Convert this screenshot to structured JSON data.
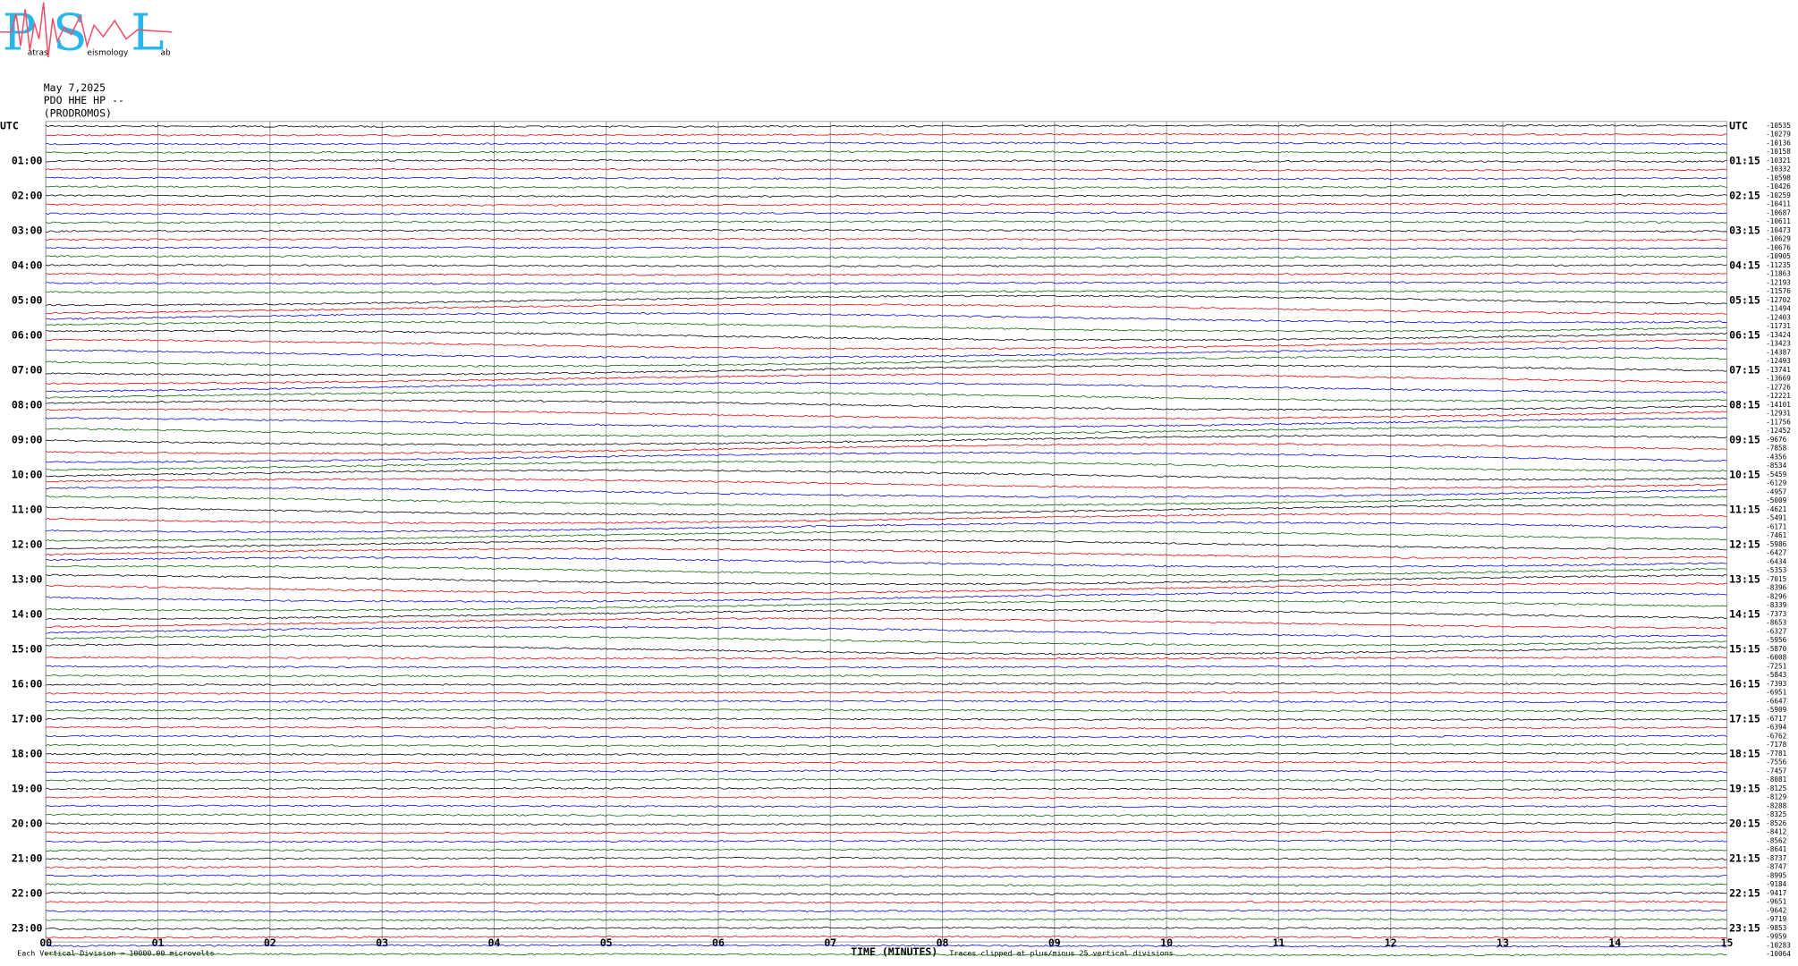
{
  "header": {
    "date": "May 7,2025",
    "station": "PDO HHE HP --",
    "location": "(PRODROMOS)"
  },
  "logo": {
    "letters": [
      "P",
      "S",
      "L"
    ],
    "words": [
      "atras",
      "eismology",
      "ab"
    ]
  },
  "left_labels": [
    "UTC",
    "01:00",
    "02:00",
    "03:00",
    "04:00",
    "05:00",
    "06:00",
    "07:00",
    "08:00",
    "09:00",
    "10:00",
    "11:00",
    "12:00",
    "13:00",
    "14:00",
    "15:00",
    "16:00",
    "17:00",
    "18:00",
    "19:00",
    "20:00",
    "21:00",
    "22:00",
    "23:00"
  ],
  "right_labels": [
    "UTC",
    "01:15",
    "02:15",
    "03:15",
    "04:15",
    "05:15",
    "06:15",
    "07:15",
    "08:15",
    "09:15",
    "10:15",
    "11:15",
    "12:15",
    "13:15",
    "14:15",
    "15:15",
    "16:15",
    "17:15",
    "18:15",
    "19:15",
    "20:15",
    "21:15",
    "22:15",
    "23:15"
  ],
  "row_values": [
    -10535,
    -10279,
    -10136,
    -10158,
    -10321,
    -10332,
    -10598,
    -10426,
    -10259,
    -10411,
    -10687,
    -10611,
    -10473,
    -10629,
    -10676,
    -10905,
    -11235,
    -11863,
    -12193,
    -11576,
    -12702,
    -11494,
    -12403,
    -11731,
    -13424,
    -13423,
    -14387,
    -12493,
    -13741,
    -13669,
    -12726,
    -12221,
    -14101,
    -12931,
    -11756,
    -12452,
    -9676,
    -7858,
    -4356,
    -8534,
    -5459,
    -6129,
    -4957,
    -5009,
    -4621,
    -5491,
    -6171,
    -7461,
    -5986,
    -6427,
    -6434,
    -5353,
    -7015,
    -8396,
    -8296,
    -8339,
    -7373,
    -8653,
    -6327,
    -5956,
    -5870,
    -6008,
    -7251,
    -5843,
    -7393,
    -6951,
    -6647,
    -5909,
    -6717,
    -6394,
    -6762,
    -7178,
    -7781,
    -7556,
    -7457,
    -8081,
    -8125,
    -8129,
    -8288,
    -8325,
    -8526,
    -8412,
    -8562,
    -8641,
    -8737,
    -8747,
    -8995,
    -9184,
    -9417,
    -9651,
    -9642,
    -9719,
    -9853,
    -9959,
    -10283,
    -10064
  ],
  "x_axis": {
    "title": "TIME (MINUTES)",
    "ticks": [
      "00",
      "01",
      "02",
      "03",
      "04",
      "05",
      "06",
      "07",
      "08",
      "09",
      "10",
      "11",
      "12",
      "13",
      "14",
      "15"
    ]
  },
  "footer": {
    "scale_note": "Each Vertical Division = 10000.00 microvolts",
    "clip_note": "Traces clipped at plus/minus 25 vertical divisions"
  }
}
